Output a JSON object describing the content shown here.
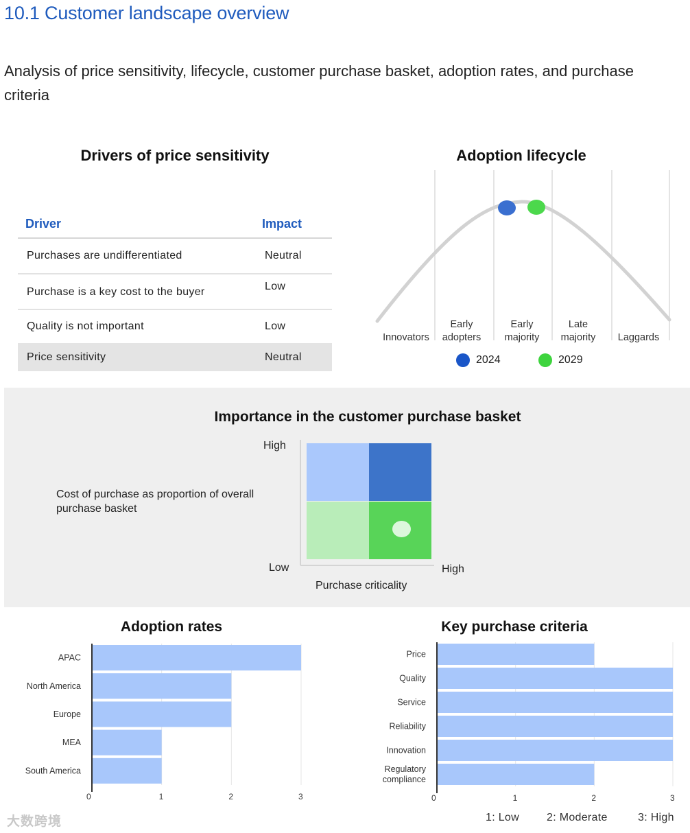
{
  "heading": "10.1 Customer landscape overview",
  "intro": "Analysis of price sensitivity, lifecycle, customer purchase basket, adoption rates, and purchase criteria",
  "drivers": {
    "title": "Drivers of price sensitivity",
    "col_driver": "Driver",
    "col_impact": "Impact",
    "rows": [
      {
        "driver": "Purchases are undifferentiated",
        "impact": "Neutral"
      },
      {
        "driver": "Purchase is a key cost to the buyer",
        "impact": "Low"
      },
      {
        "driver": "Quality is not important",
        "impact": "Low"
      },
      {
        "driver": "Price sensitivity",
        "impact": "Neutral"
      }
    ]
  },
  "lifecycle": {
    "title": "Adoption lifecycle",
    "stages": [
      "Innovators",
      "Early adopters",
      "Early majority",
      "Late majority",
      "Laggards"
    ],
    "stage_lines": [
      [
        "Innovators"
      ],
      [
        "Early",
        "adopters"
      ],
      [
        "Early",
        "majority"
      ],
      [
        "Late",
        "majority"
      ],
      [
        "Laggards"
      ]
    ],
    "legend": [
      {
        "label": "2024",
        "color": "#1a56c8"
      },
      {
        "label": "2029",
        "color": "#3ed43e"
      }
    ]
  },
  "basket": {
    "title": "Importance in the customer purchase basket",
    "y_label": "Cost of purchase as proportion of overall purchase basket",
    "y_high": "High",
    "y_low": "Low",
    "x_high": "High",
    "x_label": "Purchase criticality",
    "position": {
      "cost": "Low",
      "criticality": "High"
    },
    "colors": {
      "top_left": "#aac8fc",
      "top_right": "#3d74c9",
      "bottom_left": "#b9edb9",
      "bottom_right": "#58d458"
    }
  },
  "adoption_rates": {
    "title": "Adoption rates",
    "ticks": [
      "0",
      "1",
      "2",
      "3"
    ]
  },
  "purchase_criteria": {
    "title": "Key purchase criteria",
    "ticks": [
      "0",
      "1",
      "2",
      "3"
    ],
    "scale": [
      "1: Low",
      "2: Moderate",
      "3: High"
    ]
  },
  "chart_data": [
    {
      "type": "bar",
      "orientation": "horizontal",
      "title": "Adoption rates",
      "categories": [
        "APAC",
        "North America",
        "Europe",
        "MEA",
        "South America"
      ],
      "values": [
        3,
        2,
        2,
        1,
        1
      ],
      "xlim": [
        0,
        3
      ],
      "color": "#a8c7fb"
    },
    {
      "type": "bar",
      "orientation": "horizontal",
      "title": "Key purchase criteria",
      "categories": [
        "Price",
        "Quality",
        "Service",
        "Reliability",
        "Innovation",
        "Regulatory compliance"
      ],
      "values": [
        2,
        3,
        3,
        3,
        3,
        2
      ],
      "xlim": [
        0,
        3
      ],
      "color": "#a8c7fb"
    }
  ],
  "watermark": "大数跨境"
}
